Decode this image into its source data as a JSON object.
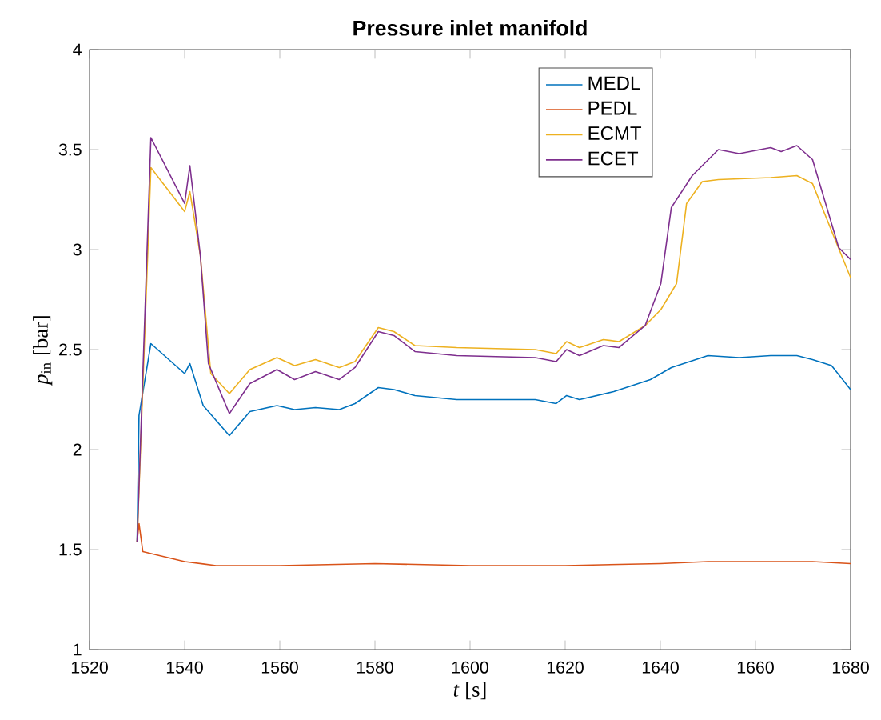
{
  "chart_data": {
    "type": "line",
    "title": "Pressure inlet manifold",
    "xlabel": "*t* [s]",
    "ylabel": "*p*$_{in}$ [bar]",
    "xlim": [
      1520,
      1680
    ],
    "xticks": [
      1520,
      1540,
      1560,
      1580,
      1600,
      1620,
      1640,
      1660,
      1680
    ],
    "ylim": [
      1,
      4
    ],
    "yticks": [
      1,
      1.5,
      2,
      2.5,
      3,
      3.5,
      4
    ],
    "legend": "top right",
    "line_style": "solid",
    "series": [
      {
        "name": "MEDL",
        "color": "#0072bd",
        "x": [
          1530,
          1530.4,
          1532.9,
          1540,
          1541.1,
          1543.9,
          1549.4,
          1553.7,
          1559.4,
          1563.1,
          1567.5,
          1572.5,
          1575.8,
          1580.7,
          1584,
          1588.4,
          1597.2,
          1613.7,
          1618.1,
          1620.3,
          1623,
          1630.2,
          1637.9,
          1642.3,
          1650,
          1656.6,
          1663.2,
          1668.7,
          1672,
          1676,
          1680
        ],
        "values": [
          1.54,
          2.17,
          2.53,
          2.38,
          2.43,
          2.22,
          2.07,
          2.19,
          2.22,
          2.2,
          2.21,
          2.2,
          2.23,
          2.31,
          2.3,
          2.27,
          2.25,
          2.25,
          2.23,
          2.27,
          2.25,
          2.29,
          2.35,
          2.41,
          2.47,
          2.46,
          2.47,
          2.47,
          2.45,
          2.42,
          2.3
        ]
      },
      {
        "name": "PEDL",
        "color": "#d95319",
        "x": [
          1530,
          1530.4,
          1531.2,
          1540,
          1546.6,
          1560,
          1580,
          1600,
          1620,
          1640,
          1650,
          1660,
          1672,
          1680
        ],
        "values": [
          1.54,
          1.63,
          1.49,
          1.44,
          1.42,
          1.42,
          1.43,
          1.42,
          1.42,
          1.43,
          1.44,
          1.44,
          1.44,
          1.43
        ]
      },
      {
        "name": "ECMT",
        "color": "#edb120",
        "x": [
          1530,
          1532.9,
          1540,
          1541.1,
          1543.3,
          1545.5,
          1549.4,
          1553.7,
          1559.4,
          1563.1,
          1567.5,
          1572.5,
          1575.8,
          1580.7,
          1584,
          1588.4,
          1597.2,
          1613.7,
          1618.1,
          1620.3,
          1623,
          1628,
          1631.3,
          1636.8,
          1640.1,
          1643.4,
          1645.5,
          1648.8,
          1652.2,
          1663.2,
          1668.7,
          1672,
          1676.4,
          1680
        ],
        "values": [
          1.54,
          3.41,
          3.19,
          3.29,
          2.97,
          2.38,
          2.28,
          2.4,
          2.46,
          2.42,
          2.45,
          2.41,
          2.44,
          2.61,
          2.59,
          2.52,
          2.51,
          2.5,
          2.48,
          2.54,
          2.51,
          2.55,
          2.54,
          2.62,
          2.7,
          2.83,
          3.23,
          3.34,
          3.35,
          3.36,
          3.37,
          3.33,
          3.07,
          2.86
        ]
      },
      {
        "name": "ECET",
        "color": "#7e2f8e",
        "x": [
          1530,
          1532.9,
          1540,
          1541.1,
          1543.3,
          1545,
          1549.4,
          1553.7,
          1559.4,
          1563.1,
          1567.5,
          1572.5,
          1575.8,
          1580.7,
          1584,
          1588.4,
          1597.2,
          1613.7,
          1618.1,
          1620.3,
          1623,
          1628,
          1631.3,
          1636.8,
          1640.1,
          1642.3,
          1646.7,
          1652.2,
          1656.6,
          1663.2,
          1665.4,
          1668.7,
          1672,
          1677.5,
          1680
        ],
        "values": [
          1.54,
          3.56,
          3.23,
          3.42,
          2.97,
          2.43,
          2.18,
          2.33,
          2.4,
          2.35,
          2.39,
          2.35,
          2.41,
          2.59,
          2.57,
          2.49,
          2.47,
          2.46,
          2.44,
          2.5,
          2.47,
          2.52,
          2.51,
          2.62,
          2.83,
          3.21,
          3.37,
          3.5,
          3.48,
          3.51,
          3.49,
          3.52,
          3.45,
          3.01,
          2.95
        ]
      }
    ]
  }
}
